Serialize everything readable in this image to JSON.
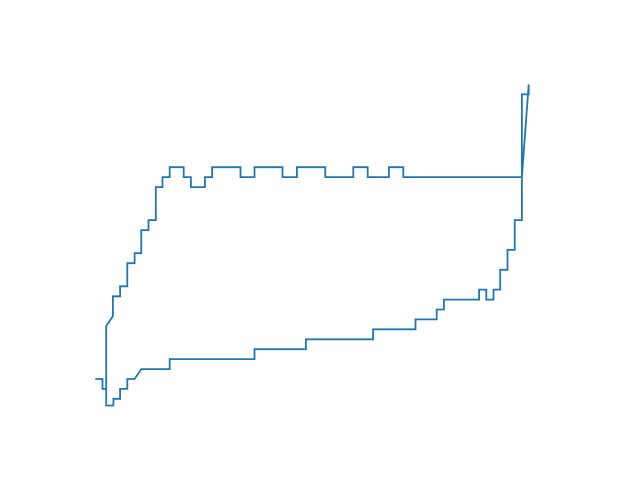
{
  "chart_data": {
    "type": "line",
    "axes_visible": false,
    "grid": false,
    "legend": null,
    "line_color": "#1f77b4",
    "xlim": [
      -0.05,
      1.05
    ],
    "ylim": [
      -0.05,
      1.05
    ],
    "series": [
      {
        "points": [
          [
            0.008,
            0.047
          ],
          [
            0.008,
            0.24
          ],
          [
            0.023,
            0.27
          ],
          [
            0.023,
            0.33
          ],
          [
            0.039,
            0.33
          ],
          [
            0.039,
            0.36
          ],
          [
            0.055,
            0.36
          ],
          [
            0.055,
            0.43
          ],
          [
            0.071,
            0.43
          ],
          [
            0.071,
            0.46
          ],
          [
            0.086,
            0.46
          ],
          [
            0.086,
            0.53
          ],
          [
            0.102,
            0.53
          ],
          [
            0.102,
            0.56
          ],
          [
            0.118,
            0.56
          ],
          [
            0.118,
            0.66
          ],
          [
            0.133,
            0.66
          ],
          [
            0.133,
            0.69
          ],
          [
            0.149,
            0.69
          ],
          [
            0.149,
            0.72
          ],
          [
            0.18,
            0.72
          ],
          [
            0.18,
            0.69
          ],
          [
            0.196,
            0.69
          ],
          [
            0.196,
            0.66
          ],
          [
            0.227,
            0.66
          ],
          [
            0.227,
            0.69
          ],
          [
            0.243,
            0.69
          ],
          [
            0.243,
            0.72
          ],
          [
            0.306,
            0.72
          ],
          [
            0.306,
            0.69
          ],
          [
            0.337,
            0.69
          ],
          [
            0.337,
            0.72
          ],
          [
            0.399,
            0.72
          ],
          [
            0.399,
            0.69
          ],
          [
            0.431,
            0.69
          ],
          [
            0.431,
            0.72
          ],
          [
            0.494,
            0.72
          ],
          [
            0.494,
            0.69
          ],
          [
            0.556,
            0.69
          ],
          [
            0.556,
            0.72
          ],
          [
            0.588,
            0.72
          ],
          [
            0.588,
            0.69
          ],
          [
            0.635,
            0.69
          ],
          [
            0.635,
            0.72
          ],
          [
            0.667,
            0.72
          ],
          [
            0.667,
            0.69
          ],
          [
            0.93,
            0.69
          ],
          [
            0.945,
            0.97
          ],
          [
            0.945,
            0.94
          ],
          [
            0.93,
            0.94
          ],
          [
            0.93,
            0.69
          ],
          [
            0.93,
            0.56
          ],
          [
            0.914,
            0.56
          ],
          [
            0.914,
            0.47
          ],
          [
            0.898,
            0.47
          ],
          [
            0.898,
            0.41
          ],
          [
            0.882,
            0.41
          ],
          [
            0.882,
            0.35
          ],
          [
            0.867,
            0.35
          ],
          [
            0.867,
            0.32
          ],
          [
            0.851,
            0.32
          ],
          [
            0.851,
            0.35
          ],
          [
            0.835,
            0.35
          ],
          [
            0.835,
            0.32
          ],
          [
            0.757,
            0.32
          ],
          [
            0.757,
            0.29
          ],
          [
            0.741,
            0.29
          ],
          [
            0.741,
            0.26
          ],
          [
            0.694,
            0.26
          ],
          [
            0.694,
            0.23
          ],
          [
            0.6,
            0.23
          ],
          [
            0.6,
            0.2
          ],
          [
            0.451,
            0.2
          ],
          [
            0.451,
            0.17
          ],
          [
            0.337,
            0.17
          ],
          [
            0.337,
            0.14
          ],
          [
            0.149,
            0.14
          ],
          [
            0.149,
            0.11
          ],
          [
            0.086,
            0.11
          ],
          [
            0.071,
            0.08
          ],
          [
            0.055,
            0.08
          ],
          [
            0.055,
            0.05
          ],
          [
            0.039,
            0.05
          ],
          [
            0.039,
            0.02
          ],
          [
            0.024,
            0.02
          ],
          [
            0.024,
            0
          ],
          [
            0.008,
            0
          ],
          [
            0.008,
            0.05
          ],
          [
            0.0,
            0.05
          ],
          [
            0.0,
            0.08
          ],
          [
            -0.016,
            0.08
          ]
        ]
      }
    ]
  }
}
